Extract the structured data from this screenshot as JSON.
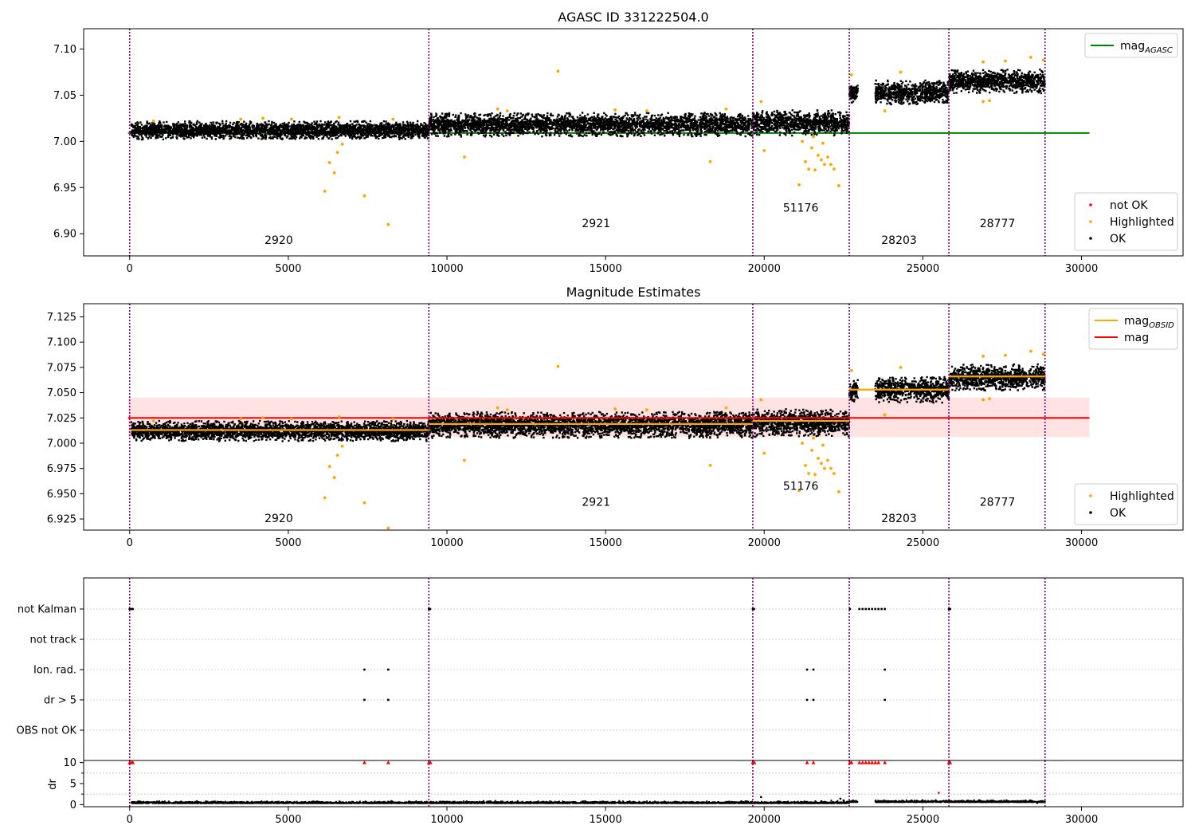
{
  "chart_data": [
    {
      "type": "scatter",
      "title": "AGASC ID 331222504.0",
      "xlim": [
        -1450,
        33200
      ],
      "ylim": [
        6.876,
        7.122
      ],
      "xticks": [
        0,
        5000,
        10000,
        15000,
        20000,
        25000,
        30000
      ],
      "yticks": [
        6.9,
        6.95,
        7.0,
        7.05,
        7.1
      ],
      "ytick_format": 2,
      "obs_boundaries": [
        0,
        9430,
        19640,
        22680,
        25820,
        28850
      ],
      "agasc_mag": 7.009,
      "agasc_mag_x_range": [
        -50,
        30250
      ],
      "obs_labels": [
        {
          "text": "2920",
          "x": 4700,
          "y": 6.889
        },
        {
          "text": "2921",
          "x": 14700,
          "y": 6.907
        },
        {
          "text": "51176",
          "x": 21150,
          "y": 6.924
        },
        {
          "text": "28203",
          "x": 24250,
          "y": 6.889
        },
        {
          "text": "28777",
          "x": 27350,
          "y": 6.907
        }
      ],
      "segments": [
        {
          "x0": 50,
          "x1": 9430,
          "center": 7.012,
          "half_width": 0.01
        },
        {
          "x0": 9430,
          "x1": 19640,
          "center": 7.018,
          "half_width": 0.013
        },
        {
          "x0": 19640,
          "x1": 22680,
          "center": 7.02,
          "half_width": 0.014
        },
        {
          "x0": 22680,
          "x1": 22950,
          "center": 7.052,
          "half_width": 0.011
        },
        {
          "x0": 23500,
          "x1": 25820,
          "center": 7.053,
          "half_width": 0.013
        },
        {
          "x0": 25820,
          "x1": 28850,
          "center": 7.065,
          "half_width": 0.013
        }
      ],
      "highlighted_points": [
        [
          6150,
          6.946
        ],
        [
          6300,
          6.977
        ],
        [
          6450,
          6.966
        ],
        [
          6550,
          6.988
        ],
        [
          6700,
          6.997
        ],
        [
          7400,
          6.941
        ],
        [
          8150,
          6.91
        ],
        [
          10550,
          6.983
        ],
        [
          13500,
          7.076
        ],
        [
          18300,
          6.978
        ],
        [
          20000,
          6.99
        ],
        [
          21100,
          6.953
        ],
        [
          21300,
          6.978
        ],
        [
          21400,
          6.97
        ],
        [
          21500,
          6.993
        ],
        [
          21600,
          6.969
        ],
        [
          21700,
          6.985
        ],
        [
          21800,
          6.98
        ],
        [
          21850,
          6.998
        ],
        [
          21900,
          6.975
        ],
        [
          22000,
          6.983
        ],
        [
          22100,
          6.975
        ],
        [
          22200,
          6.97
        ],
        [
          22350,
          6.952
        ],
        [
          21200,
          7.0
        ],
        [
          21550,
          7.005
        ],
        [
          23800,
          7.033
        ],
        [
          24300,
          7.075
        ],
        [
          26900,
          7.043
        ],
        [
          27100,
          7.044
        ],
        [
          750,
          7.022
        ],
        [
          3500,
          7.024
        ],
        [
          4200,
          7.025
        ],
        [
          5100,
          7.024
        ],
        [
          6600,
          7.026
        ],
        [
          8300,
          7.024
        ],
        [
          11600,
          7.035
        ],
        [
          11900,
          7.033
        ],
        [
          15300,
          7.034
        ],
        [
          16300,
          7.033
        ],
        [
          18800,
          7.035
        ],
        [
          19900,
          7.043
        ],
        [
          22750,
          7.072
        ],
        [
          26900,
          7.086
        ],
        [
          27600,
          7.087
        ],
        [
          28400,
          7.091
        ],
        [
          28800,
          7.088
        ]
      ],
      "legends": [
        {
          "position": "top-right",
          "entries": [
            {
              "type": "line",
              "color": "#008000",
              "label": "mag",
              "sub": "AGASC"
            }
          ]
        },
        {
          "position": "lower-right",
          "entries": [
            {
              "type": "dot",
              "color": "#ff0000",
              "label": "not OK"
            },
            {
              "type": "dot",
              "color": "#ffa500",
              "label": "Highlighted"
            },
            {
              "type": "dot",
              "color": "#000000",
              "label": "OK"
            }
          ]
        }
      ]
    },
    {
      "type": "scatter",
      "title": "Magnitude Estimates",
      "xlim": [
        -1450,
        33200
      ],
      "ylim": [
        6.914,
        7.138
      ],
      "xticks": [
        0,
        5000,
        10000,
        15000,
        20000,
        25000,
        30000
      ],
      "yticks": [
        6.925,
        6.95,
        6.975,
        7.0,
        7.025,
        7.05,
        7.075,
        7.1,
        7.125
      ],
      "ytick_format": 3,
      "obs_boundaries": [
        0,
        9430,
        19640,
        22680,
        25820,
        28850
      ],
      "mag": 7.025,
      "mag_band": [
        7.006,
        7.045
      ],
      "mag_x_range": [
        -50,
        30250
      ],
      "obs_mags": [
        {
          "x0": 50,
          "x1": 9430,
          "mag": 7.013
        },
        {
          "x0": 9430,
          "x1": 19640,
          "mag": 7.019
        },
        {
          "x0": 19640,
          "x1": 22680,
          "mag": 7.022
        },
        {
          "x0": 22680,
          "x1": 25820,
          "mag": 7.053
        },
        {
          "x0": 25820,
          "x1": 28850,
          "mag": 7.066
        }
      ],
      "obs_labels": [
        {
          "text": "2920",
          "x": 4700,
          "y": 6.922
        },
        {
          "text": "2921",
          "x": 14700,
          "y": 6.938
        },
        {
          "text": "51176",
          "x": 21150,
          "y": 6.954
        },
        {
          "text": "28203",
          "x": 24250,
          "y": 6.922
        },
        {
          "text": "28777",
          "x": 27350,
          "y": 6.938
        }
      ],
      "segments": [
        {
          "x0": 50,
          "x1": 9430,
          "center": 7.012,
          "half_width": 0.01
        },
        {
          "x0": 9430,
          "x1": 19640,
          "center": 7.018,
          "half_width": 0.013
        },
        {
          "x0": 19640,
          "x1": 22680,
          "center": 7.02,
          "half_width": 0.014
        },
        {
          "x0": 22680,
          "x1": 22950,
          "center": 7.052,
          "half_width": 0.011
        },
        {
          "x0": 23500,
          "x1": 25820,
          "center": 7.053,
          "half_width": 0.013
        },
        {
          "x0": 25820,
          "x1": 28850,
          "center": 7.065,
          "half_width": 0.013
        }
      ],
      "highlighted_points": [
        [
          6150,
          6.946
        ],
        [
          6300,
          6.977
        ],
        [
          6450,
          6.966
        ],
        [
          6550,
          6.988
        ],
        [
          6700,
          6.997
        ],
        [
          7400,
          6.941
        ],
        [
          8150,
          6.916
        ],
        [
          10550,
          6.983
        ],
        [
          13500,
          7.076
        ],
        [
          18300,
          6.978
        ],
        [
          20000,
          6.99
        ],
        [
          21100,
          6.953
        ],
        [
          21300,
          6.978
        ],
        [
          21400,
          6.97
        ],
        [
          21500,
          6.993
        ],
        [
          21600,
          6.969
        ],
        [
          21700,
          6.985
        ],
        [
          21800,
          6.98
        ],
        [
          21850,
          6.998
        ],
        [
          21900,
          6.975
        ],
        [
          22000,
          6.983
        ],
        [
          22100,
          6.975
        ],
        [
          22200,
          6.97
        ],
        [
          22350,
          6.952
        ],
        [
          21200,
          7.0
        ],
        [
          21550,
          7.005
        ],
        [
          23800,
          7.028
        ],
        [
          24300,
          7.075
        ],
        [
          26900,
          7.043
        ],
        [
          27100,
          7.044
        ],
        [
          750,
          7.022
        ],
        [
          3500,
          7.024
        ],
        [
          4200,
          7.025
        ],
        [
          5100,
          7.024
        ],
        [
          6600,
          7.026
        ],
        [
          8300,
          7.024
        ],
        [
          11600,
          7.035
        ],
        [
          11900,
          7.033
        ],
        [
          15300,
          7.034
        ],
        [
          16300,
          7.033
        ],
        [
          18800,
          7.035
        ],
        [
          19900,
          7.043
        ],
        [
          22750,
          7.072
        ],
        [
          26900,
          7.086
        ],
        [
          27600,
          7.087
        ],
        [
          28400,
          7.091
        ],
        [
          28800,
          7.088
        ]
      ],
      "legends": [
        {
          "position": "top-right",
          "entries": [
            {
              "type": "line",
              "color": "#ffa500",
              "label": "mag",
              "sub": "OBSID"
            },
            {
              "type": "line",
              "color": "#ff0000",
              "label": "mag",
              "sub": ""
            }
          ]
        },
        {
          "position": "lower-right",
          "entries": [
            {
              "type": "dot",
              "color": "#ffa500",
              "label": "Highlighted"
            },
            {
              "type": "dot",
              "color": "#000000",
              "label": "OK"
            }
          ]
        }
      ]
    },
    {
      "type": "scatter",
      "title": "",
      "xlim": [
        -1450,
        33200
      ],
      "xticks": [
        0,
        5000,
        10000,
        15000,
        20000,
        25000,
        30000
      ],
      "obs_boundaries": [
        0,
        9430,
        19640,
        22680,
        25820,
        28850
      ],
      "flag_rows": [
        "not Kalman",
        "not track",
        "Ion. rad.",
        "dr > 5",
        "OBS not OK"
      ],
      "flag_events": {
        "not Kalman": [
          0,
          60,
          100,
          9430,
          9470,
          19640,
          19680,
          22700,
          23000,
          23100,
          23200,
          23300,
          23400,
          23500,
          23600,
          23700,
          23800,
          25820,
          25860
        ],
        "not track": [],
        "Ion. rad.": [
          7400,
          8150,
          21350,
          21550,
          23800
        ],
        "dr > 5": [
          7400,
          8150,
          21350,
          21550,
          23800
        ],
        "OBS not OK": []
      },
      "dr_ylabel": "dr",
      "dr_yticks": [
        0,
        5,
        10
      ],
      "dr_ylim": [
        -0.5,
        10.5
      ],
      "dr_clipped": [
        0,
        60,
        100,
        7400,
        8150,
        9430,
        9480,
        19640,
        19690,
        21350,
        21550,
        22700,
        22750,
        23000,
        23100,
        23200,
        23300,
        23400,
        23500,
        23600,
        23800,
        25820,
        25860
      ],
      "dr_outliers": [
        [
          19900,
          1.8
        ],
        [
          21800,
          0.8
        ],
        [
          22400,
          1.4
        ],
        [
          22500,
          1.0
        ],
        [
          25500,
          2.8
        ],
        [
          28600,
          0.4
        ]
      ]
    }
  ]
}
